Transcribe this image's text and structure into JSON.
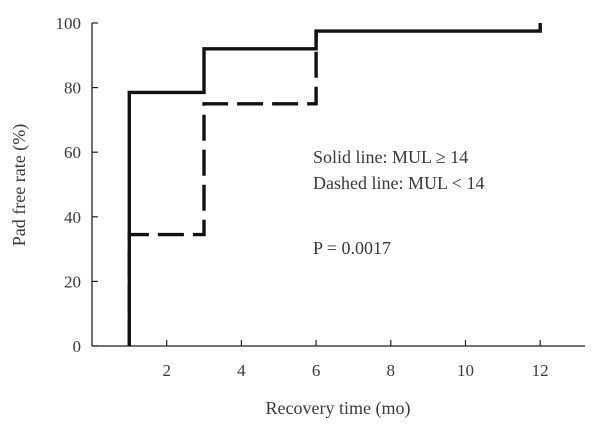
{
  "chart_data": {
    "type": "line",
    "xlabel": "Recovery time (mo)",
    "ylabel": "Pad free rate (%)",
    "xlim": [
      0,
      13.2
    ],
    "ylim": [
      0,
      100
    ],
    "x_ticks": [
      2,
      4,
      6,
      8,
      10,
      12
    ],
    "y_ticks": [
      0,
      20,
      40,
      60,
      80,
      100
    ],
    "grid": false,
    "series": [
      {
        "name": "Solid line: MUL ≥ 14",
        "style": "solid",
        "color": "#111111",
        "step_points": [
          [
            1,
            0
          ],
          [
            1,
            78.5
          ],
          [
            3,
            78.5
          ],
          [
            3,
            92
          ],
          [
            6,
            92
          ],
          [
            6,
            97.5
          ],
          [
            12,
            97.5
          ],
          [
            12,
            100
          ]
        ]
      },
      {
        "name": "Dashed line: MUL < 14",
        "style": "dashed",
        "color": "#111111",
        "step_points": [
          [
            1,
            0
          ],
          [
            1,
            34.5
          ],
          [
            3,
            34.5
          ],
          [
            3,
            75
          ],
          [
            6,
            75
          ],
          [
            6,
            97.5
          ]
        ]
      }
    ],
    "annotations": {
      "legend_solid": "Solid line: MUL ≥ 14",
      "legend_dashed": "Dashed line: MUL < 14",
      "p_value": "P = 0.0017"
    }
  }
}
